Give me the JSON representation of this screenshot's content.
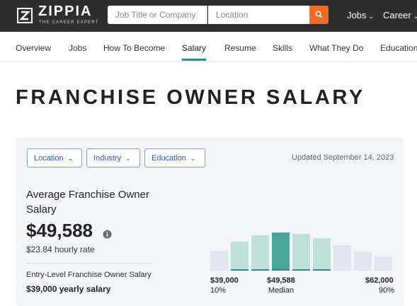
{
  "header": {
    "brand": "ZIPPIA",
    "tagline": "THE CAREER EXPERT",
    "search": {
      "job_placeholder": "Job Title or Company",
      "location_placeholder": "Location"
    },
    "nav": [
      {
        "label": "Jobs"
      },
      {
        "label": "Career"
      }
    ]
  },
  "subnav": {
    "items": [
      "Overview",
      "Jobs",
      "How To Become",
      "Salary",
      "Resume",
      "Skills",
      "What They Do",
      "Education"
    ],
    "active": "Salary"
  },
  "page_title": "FRANCHISE OWNER SALARY",
  "filters": [
    "Location",
    "Industry",
    "Education"
  ],
  "updated": "Updated September 14, 2023",
  "summary": {
    "avg_label": "Average Franchise Owner Salary",
    "avg_value": "$49,588",
    "hourly": "$23.84 hourly rate",
    "entry_label": "Entry-Level Franchise Owner Salary",
    "entry_value": "$39,000 yearly salary"
  },
  "distribution": {
    "heights": [
      0.5,
      0.74,
      0.9,
      0.97,
      0.92,
      0.83,
      0.65,
      0.49,
      0.35
    ],
    "highlighted_bins": [
      1,
      2,
      3,
      4,
      5
    ],
    "median_bin": 3,
    "labels": {
      "low_value": "$39,000",
      "low_pct": "10%",
      "median_value": "$49,588",
      "median_text": "Median",
      "high_value": "$62,000",
      "high_pct": "90%"
    }
  },
  "colors": {
    "header": "#2e2e2e",
    "accent": "#f26b20",
    "teal": "#2c8f80",
    "bar_light": "#bfe0dc",
    "bar_median": "#4aa598",
    "bar_grey": "#e1e5ef",
    "filter_blue": "#2b58b8"
  },
  "icons": {
    "logo": "zippia-logo-icon",
    "search": "search-icon",
    "info": "info-icon",
    "chevron": "chevron-down-icon"
  }
}
